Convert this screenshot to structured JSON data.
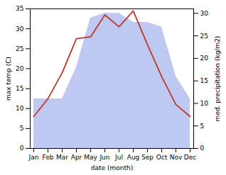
{
  "chart_data": {
    "type": "line",
    "categories": [
      "Jan",
      "Feb",
      "Mar",
      "Apr",
      "May",
      "Jun",
      "Jul",
      "Aug",
      "Sep",
      "Oct",
      "Nov",
      "Dec"
    ],
    "xlabel": "date (month)",
    "ylabel": "max temp (C)",
    "y2label": "med. precipitation (kg/m2)",
    "series": [
      {
        "type": "area",
        "axis": "y2",
        "color": "#bfc8f0",
        "values": [
          11,
          11,
          11,
          18,
          29,
          30,
          30,
          28,
          28,
          27,
          16,
          11
        ]
      },
      {
        "type": "line",
        "color": "#c0392b",
        "values": [
          8.0,
          12.5,
          19.0,
          27.5,
          28.0,
          33.5,
          30.5,
          34.5,
          26.0,
          18.0,
          11.0,
          8.0
        ]
      }
    ],
    "ylim": [
      0,
      35
    ],
    "yticks": [
      0,
      5,
      10,
      15,
      20,
      25,
      30,
      35
    ],
    "y2lim": [
      0,
      31
    ],
    "y2ticks": [
      0,
      5,
      10,
      15,
      20,
      25,
      30
    ],
    "grid": false
  }
}
